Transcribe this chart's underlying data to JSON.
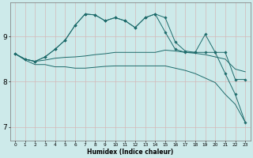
{
  "xlabel": "Humidex (Indice chaleur)",
  "bg_color": "#cdeaea",
  "line_color": "#1e6b6b",
  "grid_color": "#b8d8d8",
  "ylim": [
    6.7,
    9.75
  ],
  "xlim": [
    -0.5,
    23.5
  ],
  "yticks": [
    7,
    8,
    9
  ],
  "xticks": [
    0,
    1,
    2,
    3,
    4,
    5,
    6,
    7,
    8,
    9,
    10,
    11,
    12,
    13,
    14,
    15,
    16,
    17,
    18,
    19,
    20,
    21,
    22,
    23
  ],
  "line1_x": [
    0,
    1,
    2,
    3,
    4,
    5,
    6,
    7,
    8,
    9,
    10,
    11,
    12,
    13,
    14,
    15,
    16,
    17,
    18,
    19,
    20,
    21,
    22,
    23
  ],
  "line1_y": [
    8.62,
    8.5,
    8.45,
    8.48,
    8.52,
    8.54,
    8.55,
    8.57,
    8.6,
    8.62,
    8.65,
    8.65,
    8.65,
    8.65,
    8.65,
    8.7,
    8.68,
    8.65,
    8.63,
    8.6,
    8.55,
    8.5,
    8.28,
    8.22
  ],
  "line2_x": [
    0,
    1,
    2,
    3,
    4,
    5,
    6,
    7,
    8,
    9,
    10,
    11,
    12,
    13,
    14,
    15,
    16,
    17,
    18,
    19,
    20,
    21,
    22,
    23
  ],
  "line2_y": [
    8.62,
    8.48,
    8.38,
    8.38,
    8.33,
    8.33,
    8.3,
    8.3,
    8.32,
    8.34,
    8.35,
    8.35,
    8.35,
    8.35,
    8.35,
    8.35,
    8.3,
    8.25,
    8.18,
    8.08,
    7.98,
    7.72,
    7.5,
    7.1
  ],
  "line3_x": [
    0,
    1,
    2,
    3,
    4,
    5,
    6,
    7,
    8,
    9,
    10,
    11,
    12,
    13,
    14,
    15,
    16,
    17,
    18,
    19,
    20,
    21,
    22,
    23
  ],
  "line3_y": [
    8.62,
    8.5,
    8.45,
    8.55,
    8.72,
    8.92,
    9.25,
    9.5,
    9.48,
    9.35,
    9.42,
    9.35,
    9.2,
    9.42,
    9.5,
    9.42,
    8.88,
    8.68,
    8.65,
    9.05,
    8.65,
    8.65,
    8.05,
    8.05
  ],
  "line4_x": [
    0,
    1,
    2,
    3,
    4,
    5,
    6,
    7,
    8,
    9,
    10,
    11,
    12,
    13,
    14,
    15,
    16,
    17,
    18,
    19,
    20,
    21,
    22,
    23
  ],
  "line4_y": [
    8.62,
    8.5,
    8.45,
    8.55,
    8.72,
    8.92,
    9.25,
    9.5,
    9.48,
    9.35,
    9.42,
    9.35,
    9.2,
    9.42,
    9.5,
    9.1,
    8.72,
    8.65,
    8.65,
    8.65,
    8.65,
    8.18,
    7.72,
    7.1
  ]
}
